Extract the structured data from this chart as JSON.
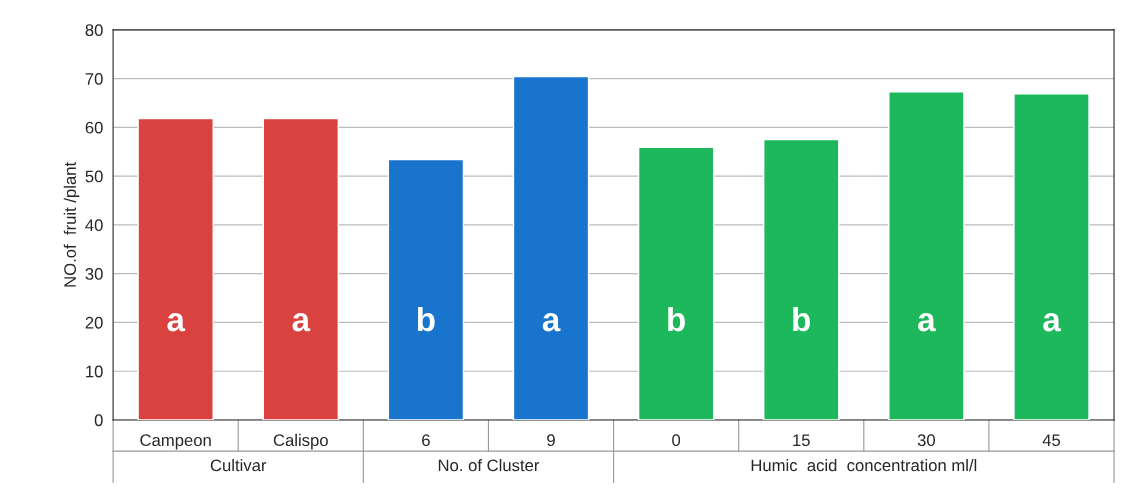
{
  "chart_data": {
    "type": "bar",
    "ylabel": "NO.of  fruit /plant",
    "categories": [
      "Campeon",
      "Calispo",
      "6",
      "9",
      "0",
      "15",
      "30",
      "45"
    ],
    "values": [
      61.8,
      61.8,
      53.4,
      70.4,
      55.9,
      57.5,
      67.3,
      66.9
    ],
    "colors": [
      "#d9423e",
      "#d9423e",
      "#1874cd",
      "#1874cd",
      "#1db85c",
      "#1db85c",
      "#1db85c",
      "#1db85c"
    ],
    "ylim": [
      0,
      80
    ],
    "yticks": [
      0,
      10,
      20,
      30,
      40,
      50,
      60,
      70,
      80
    ],
    "grid": "y",
    "annotations": [
      "a",
      "a",
      "b",
      "a",
      "b",
      "b",
      "a",
      "a",
      "Cultivar",
      "No. of Cluster",
      "Humic  acid  concentration ml/l"
    ]
  }
}
